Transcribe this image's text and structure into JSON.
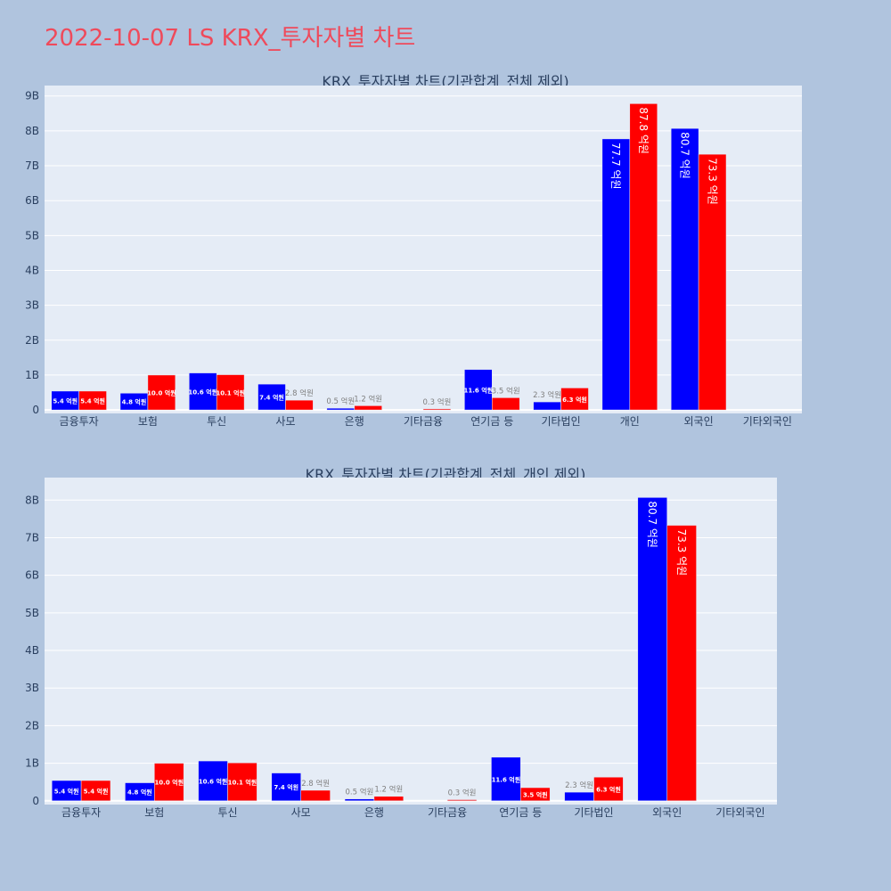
{
  "page": {
    "title": "2022-10-07 LS KRX_투자자별 차트"
  },
  "colors": {
    "buy": "#0000ff",
    "sell": "#ff0000",
    "plot_bg": "#e5ecf6",
    "page_bg": "#b0c4de",
    "title": "#ef4a5b",
    "text": "#2a3f5f"
  },
  "chart_data": [
    {
      "type": "bar",
      "title": "KRX_투자자별 차트(기관합계_전체 제외)",
      "categories": [
        "금융투자",
        "보험",
        "투신",
        "사모",
        "은행",
        "기타금융",
        "연기금 등",
        "기타법인",
        "개인",
        "외국인",
        "기타외국인"
      ],
      "series": [
        {
          "values": [
            540000000,
            480000000,
            1060000000,
            740000000,
            50000000,
            0,
            1160000000,
            230000000,
            7770000000,
            8070000000,
            0
          ],
          "labels": [
            "5.4 억원",
            "4.8 억원",
            "10.6 억원",
            "7.4 억원",
            "0.5 억원",
            "",
            "11.6 억원",
            "2.3 억원",
            "77.7 억원",
            "80.7 억원",
            ""
          ]
        },
        {
          "values": [
            540000000,
            1000000000,
            1010000000,
            280000000,
            120000000,
            30000000,
            350000000,
            630000000,
            8780000000,
            7330000000,
            0
          ],
          "labels": [
            "5.4 억원",
            "10.0 억원",
            "10.1 억원",
            "2.8 억원",
            "1.2 억원",
            "0.3 억원",
            "3.5 억원",
            "6.3 억원",
            "87.8 억원",
            "73.3 억원",
            ""
          ]
        }
      ],
      "yticks": [
        "0",
        "1B",
        "2B",
        "3B",
        "4B",
        "5B",
        "6B",
        "7B",
        "8B",
        "9B"
      ],
      "ylim": [
        -100000000,
        9300000000
      ],
      "grid": true,
      "legend": "none"
    },
    {
      "type": "bar",
      "title": "KRX_투자자별 차트(기관합계_전체_개인 제외)",
      "categories": [
        "금융투자",
        "보험",
        "투신",
        "사모",
        "은행",
        "기타금융",
        "연기금 등",
        "기타법인",
        "외국인",
        "기타외국인"
      ],
      "series": [
        {
          "values": [
            540000000,
            480000000,
            1060000000,
            740000000,
            50000000,
            0,
            1160000000,
            230000000,
            8070000000,
            0
          ],
          "labels": [
            "5.4 억원",
            "4.8 억원",
            "10.6 억원",
            "7.4 억원",
            "0.5 억원",
            "",
            "11.6 억원",
            "2.3 억원",
            "80.7 억원",
            ""
          ]
        },
        {
          "values": [
            540000000,
            1000000000,
            1010000000,
            280000000,
            120000000,
            30000000,
            350000000,
            630000000,
            7330000000,
            0
          ],
          "labels": [
            "5.4 억원",
            "10.0 억원",
            "10.1 억원",
            "2.8 억원",
            "1.2 억원",
            "0.3 억원",
            "3.5 억원",
            "6.3 억원",
            "73.3 억원",
            ""
          ]
        }
      ],
      "yticks": [
        "0",
        "1B",
        "2B",
        "3B",
        "4B",
        "5B",
        "6B",
        "7B",
        "8B"
      ],
      "ylim": [
        -100000000,
        8600000000
      ],
      "grid": true,
      "legend": "none"
    }
  ]
}
